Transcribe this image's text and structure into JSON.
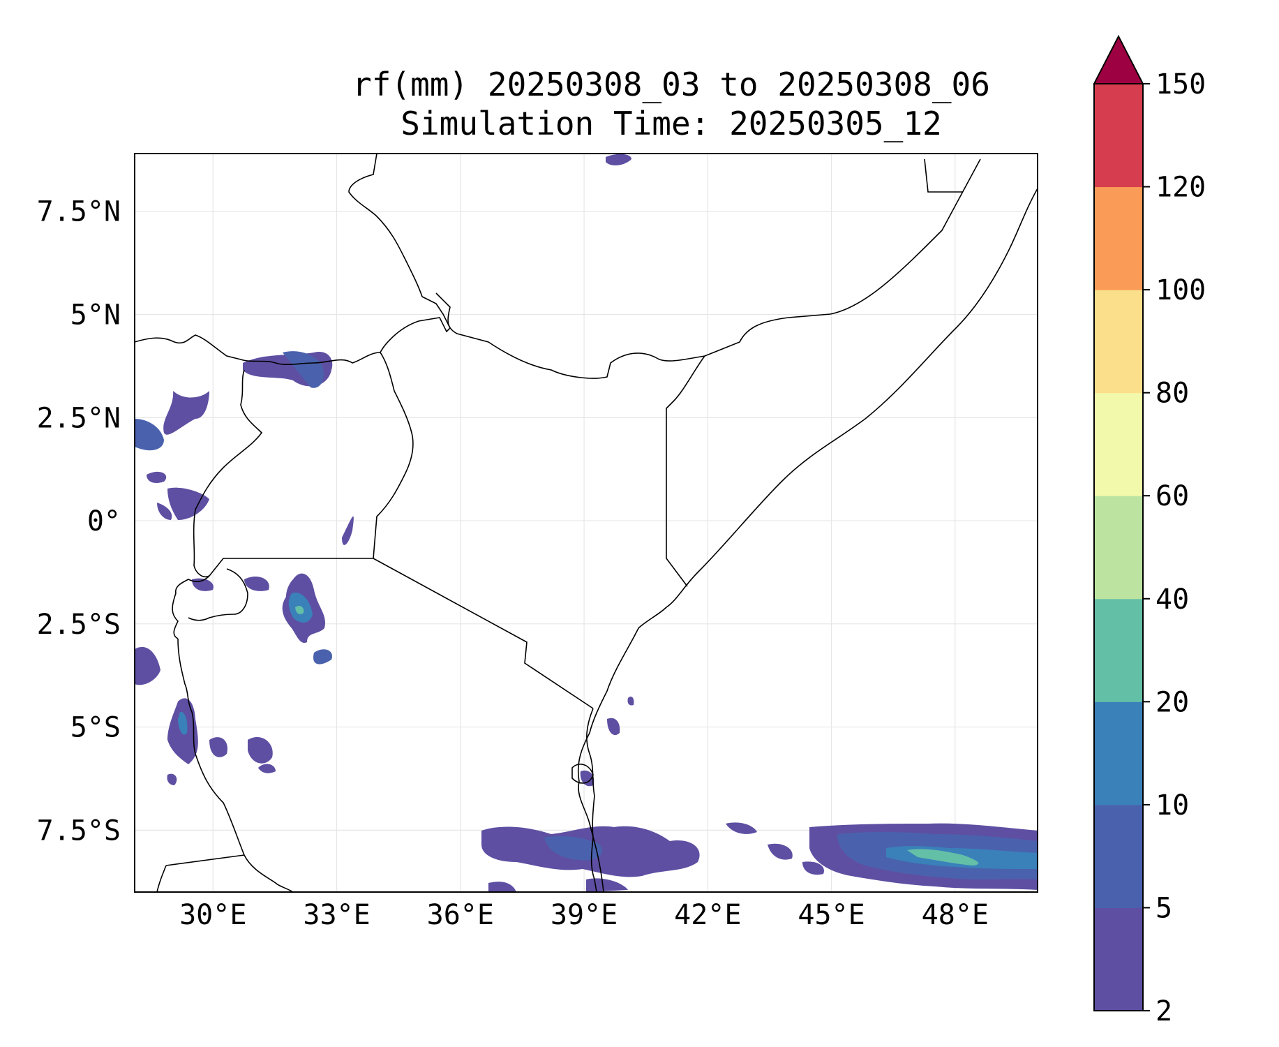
{
  "title": {
    "line1": "rf(mm) 20250308_03 to 20250308_06",
    "line2": "Simulation Time: 20250305_12"
  },
  "map": {
    "lon_range": [
      28.1,
      50.0
    ],
    "lat_range": [
      -9.0,
      8.9
    ],
    "gridlines": true
  },
  "axes": {
    "x_ticks": [
      {
        "value": 30,
        "label": "30°E"
      },
      {
        "value": 33,
        "label": "33°E"
      },
      {
        "value": 36,
        "label": "36°E"
      },
      {
        "value": 39,
        "label": "39°E"
      },
      {
        "value": 42,
        "label": "42°E"
      },
      {
        "value": 45,
        "label": "45°E"
      },
      {
        "value": 48,
        "label": "48°E"
      }
    ],
    "y_ticks": [
      {
        "value": 7.5,
        "label": "7.5°N"
      },
      {
        "value": 5,
        "label": "5°N"
      },
      {
        "value": 2.5,
        "label": "2.5°N"
      },
      {
        "value": 0,
        "label": "0°"
      },
      {
        "value": -2.5,
        "label": "2.5°S"
      },
      {
        "value": -5,
        "label": "5°S"
      },
      {
        "value": -7.5,
        "label": "7.5°S"
      }
    ]
  },
  "colorbar": {
    "levels": [
      "2",
      "5",
      "10",
      "20",
      "40",
      "60",
      "80",
      "100",
      "120",
      "150"
    ],
    "colors": [
      "#5e4fa2",
      "#4a62ad",
      "#3a80b9",
      "#64bfa7",
      "#bce4a0",
      "#f3f9aa",
      "#fcdf8a",
      "#fa9c58",
      "#d63e4f"
    ],
    "extend_color": "#9e0142",
    "extend": "max"
  },
  "chart_data": {
    "type": "heatmap",
    "variable": "rf(mm)",
    "valid_period": [
      "20250308_03",
      "20250308_06"
    ],
    "simulation_time": "20250305_12",
    "cells": [
      {
        "lon": 32.0,
        "lat": -2.2,
        "value": 30
      },
      {
        "lon": 32.1,
        "lat": -1.6,
        "value": 8
      },
      {
        "lon": 29.3,
        "lat": -5.0,
        "value": 12
      },
      {
        "lon": 48.0,
        "lat": -8.0,
        "value": 25
      },
      {
        "lon": 46.5,
        "lat": -7.9,
        "value": 10
      },
      {
        "lon": 40.0,
        "lat": -8.0,
        "value": 8
      },
      {
        "lon": 38.5,
        "lat": -7.8,
        "value": 6
      },
      {
        "lon": 32.5,
        "lat": 3.8,
        "value": 6
      },
      {
        "lon": 29.5,
        "lat": 2.7,
        "value": 5
      },
      {
        "lon": 32.9,
        "lat": -3.3,
        "value": 5
      },
      {
        "lon": 30.4,
        "lat": -5.4,
        "value": 4
      },
      {
        "lon": 31.2,
        "lat": -6.0,
        "value": 4
      },
      {
        "lon": 28.5,
        "lat": -3.5,
        "value": 4
      },
      {
        "lon": 39.8,
        "lat": -5.0,
        "value": 3
      },
      {
        "lon": 40.0,
        "lat": 8.7,
        "value": 3
      },
      {
        "lon": 43.5,
        "lat": -7.5,
        "value": 3
      }
    ]
  }
}
